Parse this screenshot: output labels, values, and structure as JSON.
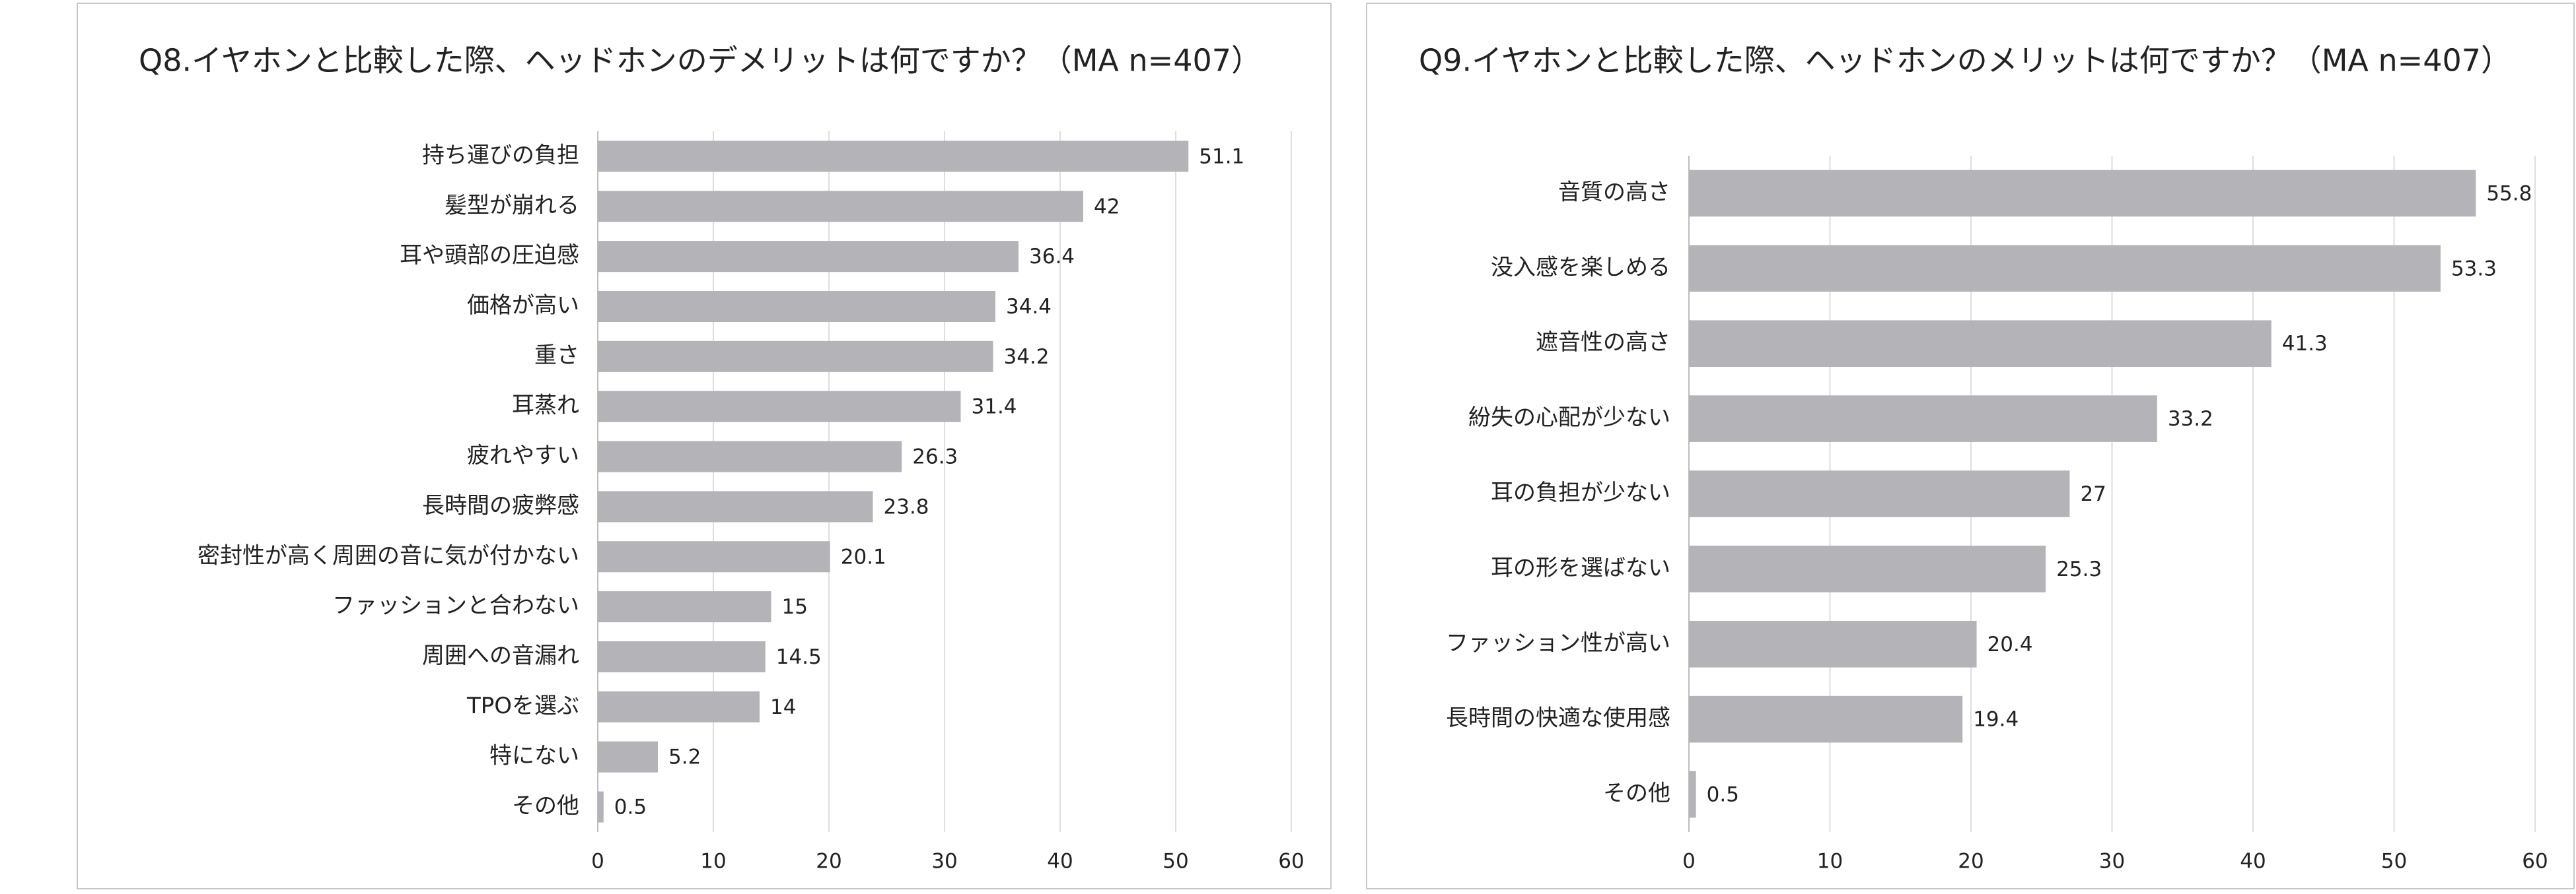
{
  "chart_data": [
    {
      "type": "bar",
      "orientation": "horizontal",
      "title": "Q8.イヤホンと比較した際、ヘッドホンのデメリットは何ですか？（MA n=407）",
      "categories": [
        "持ち運びの負担",
        "髪型が崩れる",
        "耳や頭部の圧迫感",
        "価格が高い",
        "重さ",
        "耳蒸れ",
        "疲れやすい",
        "長時間の疲弊感",
        "密封性が高く周囲の音に気が付かない",
        "ファッションと合わない",
        "周囲への音漏れ",
        "TPOを選ぶ",
        "特にない",
        "その他"
      ],
      "values": [
        51.1,
        42,
        36.4,
        34.4,
        34.2,
        31.4,
        26.3,
        23.8,
        20.1,
        15,
        14.5,
        14,
        5.2,
        0.5
      ],
      "color": "#b4b3b8",
      "xlim": [
        0,
        60
      ],
      "xticks": [
        0,
        10,
        20,
        30,
        40,
        50,
        60
      ],
      "grid": true
    },
    {
      "type": "bar",
      "orientation": "horizontal",
      "title": "Q9.イヤホンと比較した際、ヘッドホンのメリットは何ですか？（MA n=407）",
      "categories": [
        "音質の高さ",
        "没入感を楽しめる",
        "遮音性の高さ",
        "紛失の心配が少ない",
        "耳の負担が少ない",
        "耳の形を選ばない",
        "ファッション性が高い",
        "長時間の快適な使用感",
        "その他"
      ],
      "values": [
        55.8,
        53.3,
        41.3,
        33.2,
        27,
        25.3,
        20.4,
        19.4,
        0.5
      ],
      "color": "#b4b3b8",
      "xlim": [
        0,
        60
      ],
      "xticks": [
        0,
        10,
        20,
        30,
        40,
        50,
        60
      ],
      "grid": true
    }
  ]
}
